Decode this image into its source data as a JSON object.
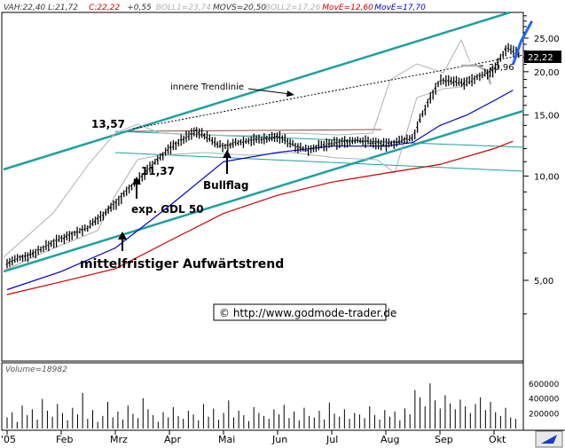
{
  "header": {
    "items": [
      {
        "key": "VA",
        "value": "H:22,40 L:21,72",
        "color": "#333333"
      },
      {
        "key": "C:",
        "value": "22,22",
        "color": "#cc0000"
      },
      {
        "key": "",
        "value": "+0,55",
        "color": "#333333"
      },
      {
        "key": "BOLL1=",
        "value": "23,74",
        "color": "#b0b0b0"
      },
      {
        "key": "MOVS=",
        "value": "20,50",
        "color": "#333333"
      },
      {
        "key": "BOLL2=",
        "value": "17,26",
        "color": "#b0b0b0"
      },
      {
        "key": "MovE=",
        "value": "12,60",
        "color": "#cc0000"
      },
      {
        "key": "MovE=",
        "value": "17,70",
        "color": "#0000cc"
      }
    ]
  },
  "annotations": {
    "inner_trendline": "innere Trendlinie",
    "high_label": "13,57",
    "low_label": "11,37",
    "bullflag": "Bullflag",
    "exp_gdl": "exp. GDL 50",
    "midterm_trend": "mittelfristiger Aufwärtstrend",
    "copyright": "© http://www.godmode-trader.de",
    "level_label": "20,96",
    "last_price": "22,22"
  },
  "volume_panel": {
    "label": "Volume=18982"
  },
  "colors": {
    "price_bars": "#000000",
    "bollinger": "#b0b0b0",
    "ema_red": "#cc0000",
    "ema_blue": "#0000cc",
    "trend_channel": "#20a0a0",
    "forecast": "#1a66ff",
    "volume": "#000000"
  },
  "chart_data": [
    {
      "type": "line",
      "title": "",
      "x_ticks": [
        "'05",
        "Feb",
        "Mrz",
        "Apr",
        "Mai",
        "Jun",
        "Jul",
        "Aug",
        "Sep",
        "Okt"
      ],
      "y_scale": "log",
      "y_ticks": [
        5,
        10,
        15,
        20,
        25
      ],
      "y_tick_labels": [
        "5,00",
        "10,00",
        "15,00",
        "20,00",
        "25,00"
      ],
      "ylim": [
        3.1,
        30
      ],
      "series": [
        {
          "name": "price",
          "x": [
            0,
            0.5,
            1,
            1.5,
            2,
            2.5,
            3,
            3.5,
            4,
            4.25,
            4.5,
            4.75,
            5,
            5.5,
            6,
            6.5,
            7,
            7.5,
            8,
            8.5,
            8.75,
            9,
            9.25,
            9.5
          ],
          "y": [
            5.6,
            6.0,
            6.6,
            7.1,
            8.3,
            10.0,
            12.0,
            13.5,
            12.1,
            12.5,
            12.7,
            12.8,
            13.0,
            11.9,
            12.4,
            12.7,
            12.3,
            12.9,
            18.9,
            18.5,
            19.5,
            20.2,
            23.6,
            22.2
          ]
        },
        {
          "name": "MovE 17,70",
          "x": [
            0,
            1,
            2,
            3,
            4,
            5,
            6,
            7,
            7.5,
            8,
            8.5,
            9,
            9.35
          ],
          "y": [
            4.7,
            5.3,
            6.2,
            8.2,
            11.0,
            11.7,
            12.2,
            12.2,
            12.5,
            14.0,
            15.0,
            16.5,
            17.7
          ]
        },
        {
          "name": "MovE 12,60",
          "x": [
            0,
            1,
            2,
            3,
            4,
            5,
            6,
            7,
            8,
            9,
            9.35
          ],
          "y": [
            4.55,
            4.95,
            5.4,
            6.5,
            7.8,
            8.8,
            9.6,
            10.2,
            10.8,
            12.0,
            12.6
          ]
        }
      ],
      "forecast": {
        "x": [
          9.35,
          9.5,
          9.7
        ],
        "y": [
          21.0,
          24.5,
          28.0
        ]
      },
      "horizontal_level": 20.96
    },
    {
      "type": "bar",
      "title": "",
      "ylabel": "Volume",
      "y_ticks": [
        200000,
        400000,
        600000
      ],
      "y_tick_labels": [
        "200000",
        "400000",
        "600000"
      ],
      "ylim": [
        0,
        700000
      ],
      "values": [
        150000,
        220000,
        90000,
        310000,
        180000,
        260000,
        120000,
        400000,
        240000,
        160000,
        330000,
        210000,
        110000,
        280000,
        190000,
        480000,
        130000,
        250000,
        90000,
        170000,
        360000,
        150000,
        230000,
        120000,
        310000,
        200000,
        140000,
        410000,
        260000,
        180000,
        90000,
        220000,
        150000,
        290000,
        170000,
        130000,
        240000,
        190000,
        110000,
        330000,
        160000,
        270000,
        120000,
        210000,
        380000,
        150000,
        240000,
        180000,
        100000,
        290000,
        210000,
        170000,
        130000,
        260000,
        190000,
        320000,
        140000,
        230000,
        110000,
        280000,
        170000,
        150000,
        240000,
        120000,
        350000,
        200000,
        160000,
        260000,
        130000,
        210000,
        190000,
        140000,
        300000,
        180000,
        120000,
        250000,
        160000,
        230000,
        110000,
        270000,
        190000,
        520000,
        420000,
        300000,
        610000,
        380000,
        270000,
        450000,
        340000,
        260000,
        390000,
        300000,
        210000,
        330000,
        420000,
        250000,
        360000,
        220000,
        170000,
        280000,
        150000,
        130000
      ]
    }
  ]
}
